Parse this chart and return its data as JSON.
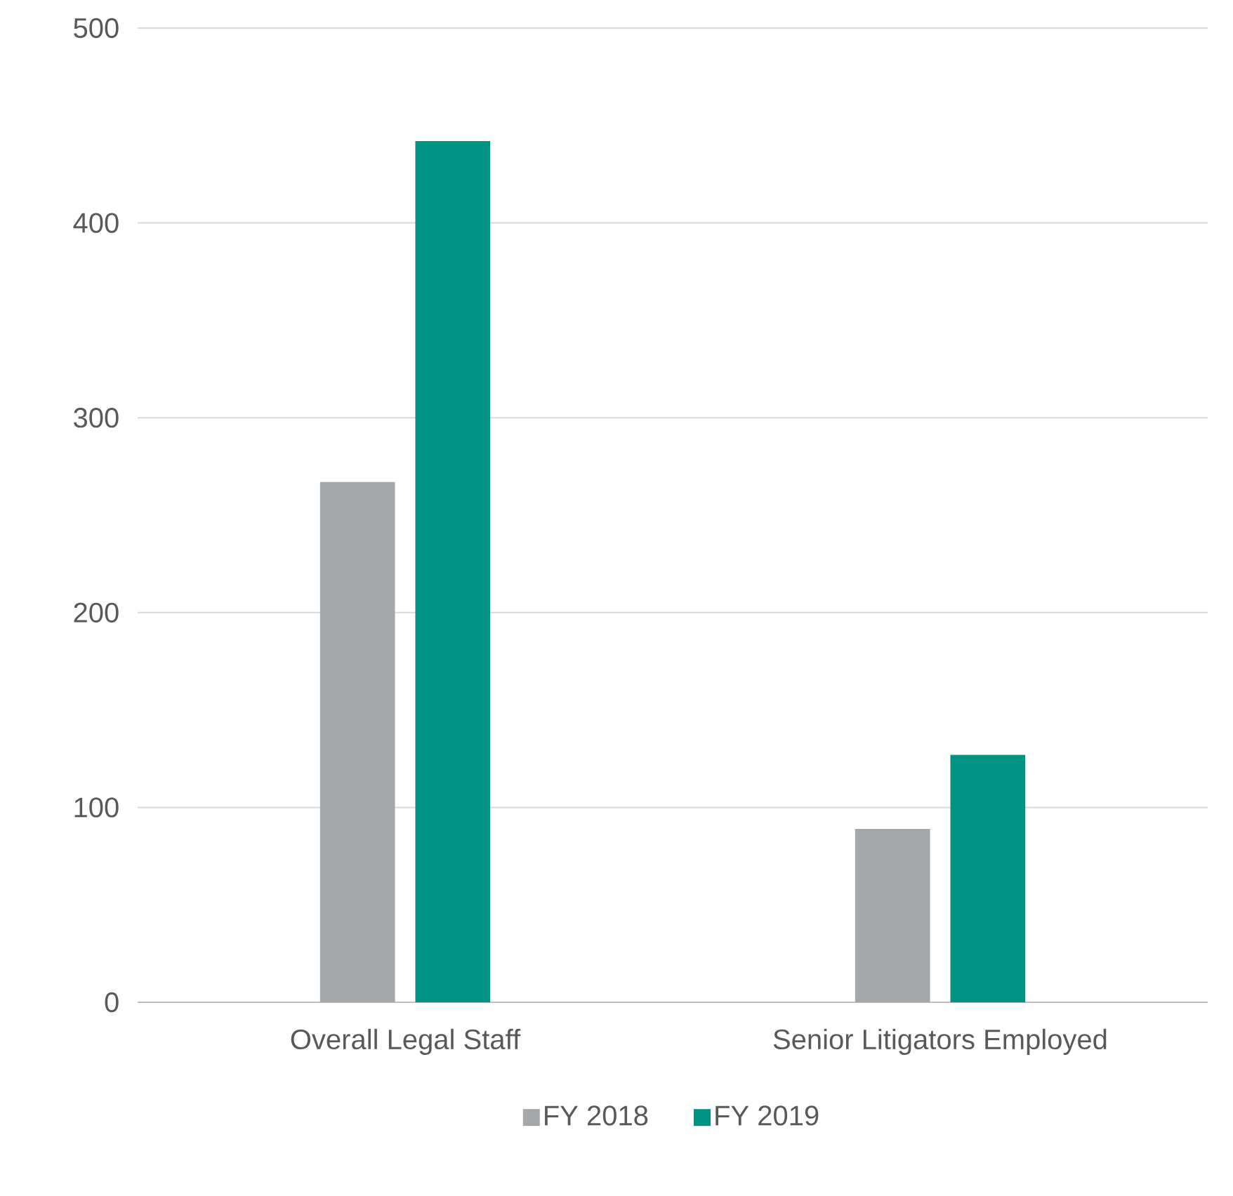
{
  "chart_data": {
    "type": "bar",
    "categories": [
      "Overall Legal Staff",
      "Senior Litigators Employed"
    ],
    "series": [
      {
        "name": "FY 2018",
        "color": "#a5a8aa",
        "values": [
          267,
          89
        ]
      },
      {
        "name": "FY 2019",
        "color": "#009383",
        "values": [
          442,
          127
        ]
      }
    ],
    "ylim": [
      0,
      500
    ],
    "yticks": [
      0,
      100,
      200,
      300,
      400,
      500
    ],
    "grid": "y",
    "legend": "bottom"
  }
}
